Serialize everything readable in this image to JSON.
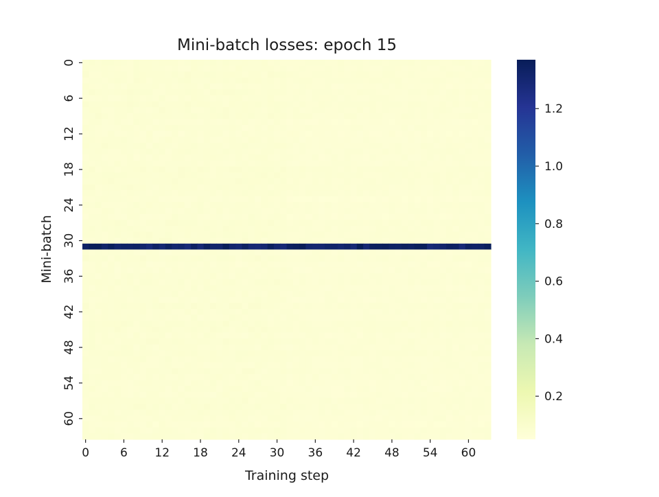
{
  "chart_data": {
    "type": "heatmap",
    "title": "Mini-batch losses: epoch 15",
    "xlabel": "Training step",
    "ylabel": "Mini-batch",
    "x_tick_labels": [
      "0",
      "6",
      "12",
      "18",
      "24",
      "30",
      "36",
      "42",
      "48",
      "54",
      "60"
    ],
    "y_tick_labels": [
      "0",
      "6",
      "12",
      "18",
      "24",
      "30",
      "36",
      "42",
      "48",
      "54",
      "60"
    ],
    "n_rows": 64,
    "n_cols": 64,
    "colormap": "YlGnBu",
    "colorbar": {
      "min": 0.05,
      "max": 1.37,
      "tick_values": [
        0.2,
        0.4,
        0.6,
        0.8,
        1.0,
        1.2
      ],
      "tick_labels": [
        "0.2",
        "0.4",
        "0.6",
        "0.8",
        "1.0",
        "1.2"
      ]
    },
    "background_range": [
      0.06,
      0.1
    ],
    "highlighted_rows": [
      {
        "row": 31,
        "value_range": [
          1.2,
          1.37
        ]
      }
    ]
  }
}
